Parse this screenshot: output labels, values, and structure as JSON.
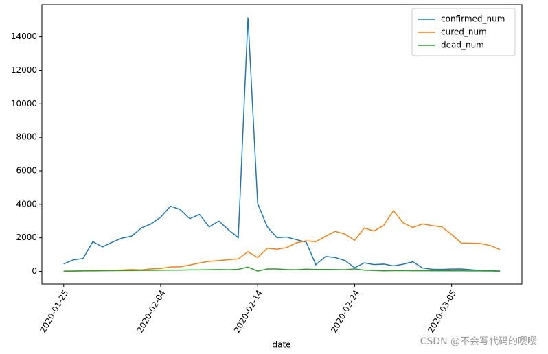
{
  "chart_data": {
    "type": "line",
    "x": [
      "2020-01-25",
      "2020-01-26",
      "2020-01-27",
      "2020-01-28",
      "2020-01-29",
      "2020-01-30",
      "2020-01-31",
      "2020-02-01",
      "2020-02-02",
      "2020-02-03",
      "2020-02-04",
      "2020-02-05",
      "2020-02-06",
      "2020-02-07",
      "2020-02-08",
      "2020-02-09",
      "2020-02-10",
      "2020-02-11",
      "2020-02-12",
      "2020-02-13",
      "2020-02-14",
      "2020-02-15",
      "2020-02-16",
      "2020-02-17",
      "2020-02-18",
      "2020-02-19",
      "2020-02-20",
      "2020-02-21",
      "2020-02-22",
      "2020-02-23",
      "2020-02-24",
      "2020-02-25",
      "2020-02-26",
      "2020-02-27",
      "2020-02-28",
      "2020-02-29",
      "2020-03-01",
      "2020-03-02",
      "2020-03-03",
      "2020-03-04",
      "2020-03-05",
      "2020-03-06",
      "2020-03-07",
      "2020-03-08",
      "2020-03-09",
      "2020-03-10"
    ],
    "series": [
      {
        "name": "confirmed_num",
        "color": "#1f77b4",
        "values": [
          444,
          688,
          769,
          1771,
          1459,
          1737,
          1981,
          2099,
          2590,
          2829,
          3235,
          3887,
          3694,
          3143,
          3399,
          2656,
          3000,
          2478,
          2015,
          15152,
          4050,
          2641,
          2009,
          2048,
          1886,
          1749,
          394,
          889,
          823,
          648,
          214,
          508,
          406,
          433,
          327,
          427,
          573,
          202,
          125,
          119,
          139,
          143,
          99,
          44,
          40,
          19
        ]
      },
      {
        "name": "cured_num",
        "color": "#ff7f0e",
        "values": [
          10,
          20,
          30,
          40,
          50,
          60,
          80,
          110,
          90,
          150,
          170,
          260,
          270,
          380,
          500,
          600,
          640,
          700,
          740,
          1170,
          820,
          1380,
          1320,
          1420,
          1700,
          1820,
          1770,
          2090,
          2390,
          2220,
          1850,
          2590,
          2410,
          2750,
          3620,
          2900,
          2620,
          2830,
          2730,
          2650,
          2200,
          1690,
          1680,
          1660,
          1540,
          1300
        ]
      },
      {
        "name": "dead_num",
        "color": "#2ca02c",
        "values": [
          15,
          15,
          25,
          26,
          38,
          43,
          46,
          45,
          57,
          64,
          65,
          73,
          73,
          86,
          89,
          97,
          108,
          97,
          121,
          254,
          13,
          143,
          142,
          106,
          98,
          136,
          114,
          118,
          109,
          97,
          150,
          71,
          52,
          29,
          44,
          47,
          35,
          42,
          31,
          38,
          31,
          30,
          28,
          27,
          22,
          11
        ]
      }
    ],
    "xlim": [
      "2020-01-22T18:00:00Z",
      "2020-03-12T06:00:00Z"
    ],
    "xticks": [
      "2020-01-25",
      "2020-02-04",
      "2020-02-14",
      "2020-02-24",
      "2020-03-05"
    ],
    "ylim": [
      -757,
      15909
    ],
    "yticks": [
      0,
      2000,
      4000,
      6000,
      8000,
      10000,
      12000,
      14000
    ],
    "xlabel": "date",
    "legend": "upper right",
    "watermark": "CSDN @不会写代码的嘤嘤"
  }
}
